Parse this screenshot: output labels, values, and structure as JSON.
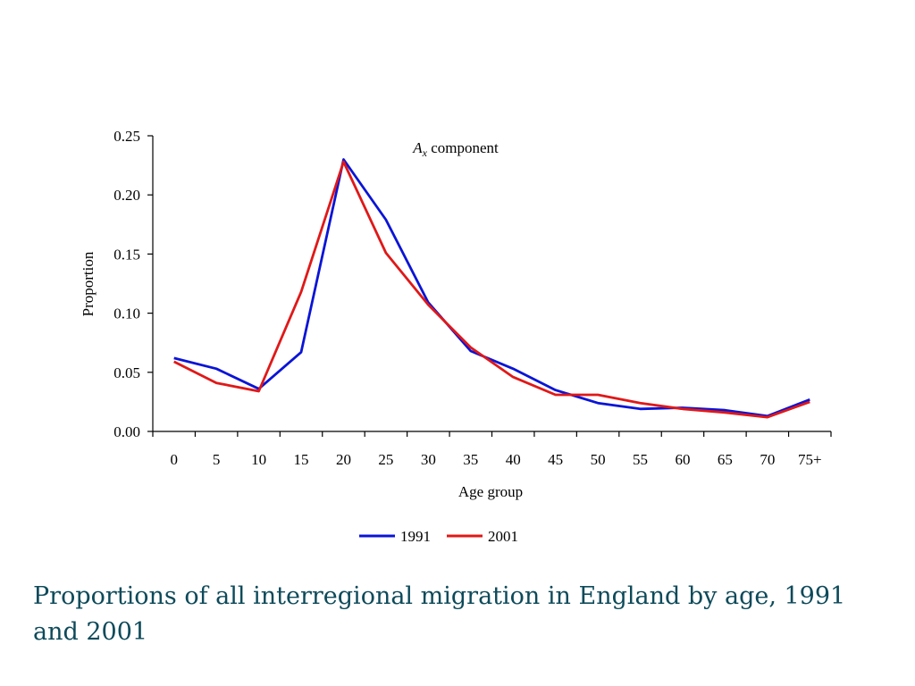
{
  "caption": "Proportions of all interregional migration in England by age, 1991 and 2001",
  "chart_data": {
    "type": "line",
    "title": {
      "main": "A",
      "sub": "x",
      "rest": " component"
    },
    "xlabel": "Age group",
    "ylabel": "Proportion",
    "categories": [
      "0",
      "5",
      "10",
      "15",
      "20",
      "25",
      "30",
      "35",
      "40",
      "45",
      "50",
      "55",
      "60",
      "65",
      "70",
      "75+"
    ],
    "yticks": [
      "0.00",
      "0.05",
      "0.10",
      "0.15",
      "0.20",
      "0.25"
    ],
    "ylim": [
      0,
      0.25
    ],
    "grid": false,
    "legend_position": "bottom",
    "series": [
      {
        "name": "1991",
        "color": "#0a14d6",
        "values": [
          0.062,
          0.053,
          0.036,
          0.067,
          0.23,
          0.179,
          0.109,
          0.068,
          0.053,
          0.035,
          0.024,
          0.019,
          0.02,
          0.018,
          0.013,
          0.027
        ]
      },
      {
        "name": "2001",
        "color": "#e01818",
        "values": [
          0.059,
          0.041,
          0.034,
          0.118,
          0.228,
          0.151,
          0.107,
          0.071,
          0.046,
          0.031,
          0.031,
          0.024,
          0.019,
          0.016,
          0.012,
          0.025
        ]
      }
    ]
  }
}
